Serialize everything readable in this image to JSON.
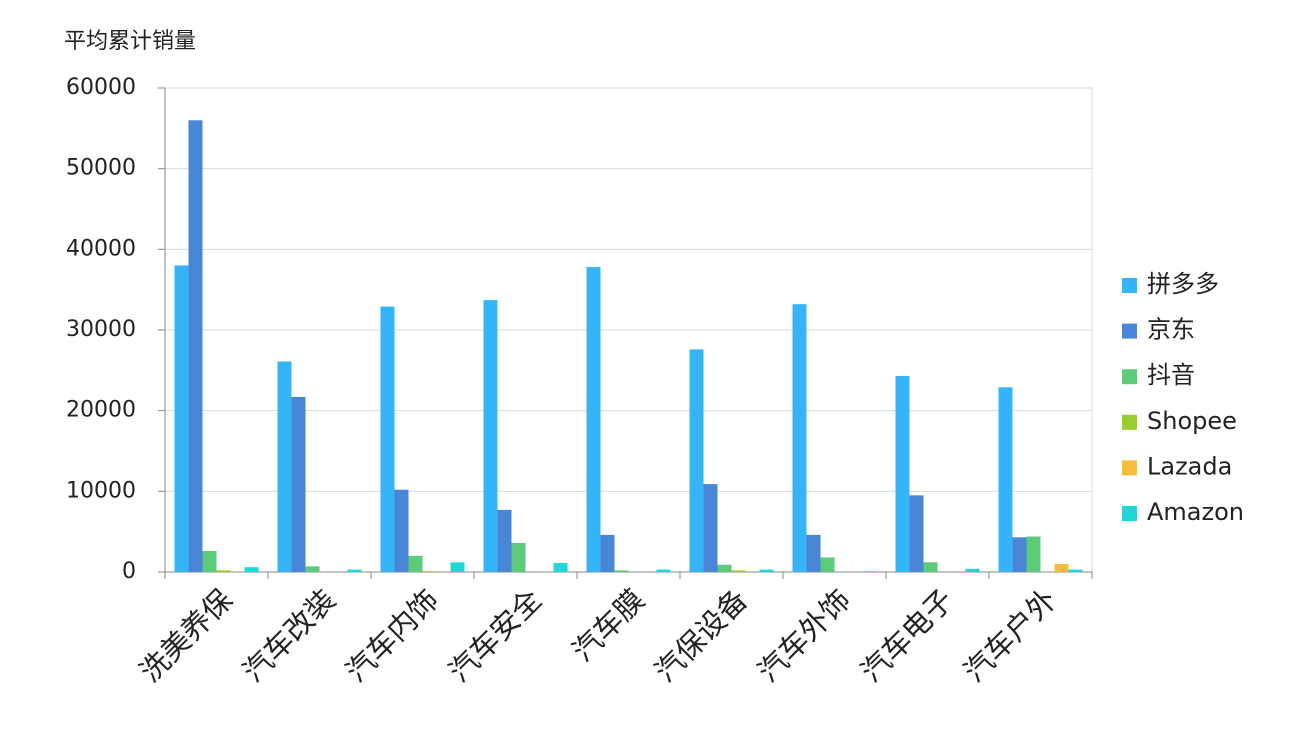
{
  "chart_data": {
    "type": "bar",
    "y_label": "平均累计销量",
    "categories": [
      "洗美养保",
      "汽车改装",
      "汽车内饰",
      "汽车安全",
      "汽车膜",
      "汽保设备",
      "汽车外饰",
      "汽车电子",
      "汽车户外"
    ],
    "series": [
      {
        "name": "拼多多",
        "color": "#35b5f8",
        "values": [
          38000,
          26100,
          32900,
          33700,
          37800,
          27600,
          33200,
          24300,
          22900
        ]
      },
      {
        "name": "京东",
        "color": "#4a86d8",
        "values": [
          56000,
          21700,
          10200,
          7700,
          4600,
          10900,
          4600,
          9500,
          4300
        ]
      },
      {
        "name": "抖音",
        "color": "#5ccc7a",
        "values": [
          2600,
          700,
          2000,
          3600,
          200,
          900,
          1800,
          1200,
          4400
        ]
      },
      {
        "name": "Shopee",
        "color": "#9acd32",
        "values": [
          200,
          0,
          100,
          0,
          0,
          200,
          0,
          0,
          0
        ]
      },
      {
        "name": "Lazada",
        "color": "#f5bd3c",
        "values": [
          0,
          0,
          0,
          0,
          0,
          0,
          0,
          0,
          1000
        ]
      },
      {
        "name": "Amazon",
        "color": "#1ed8d8",
        "values": [
          600,
          300,
          1200,
          1100,
          300,
          300,
          100,
          400,
          300
        ]
      }
    ],
    "ylim": [
      0,
      60000
    ],
    "yticks": [
      0,
      10000,
      20000,
      30000,
      40000,
      50000,
      60000
    ],
    "grid": true,
    "legend": "right"
  }
}
